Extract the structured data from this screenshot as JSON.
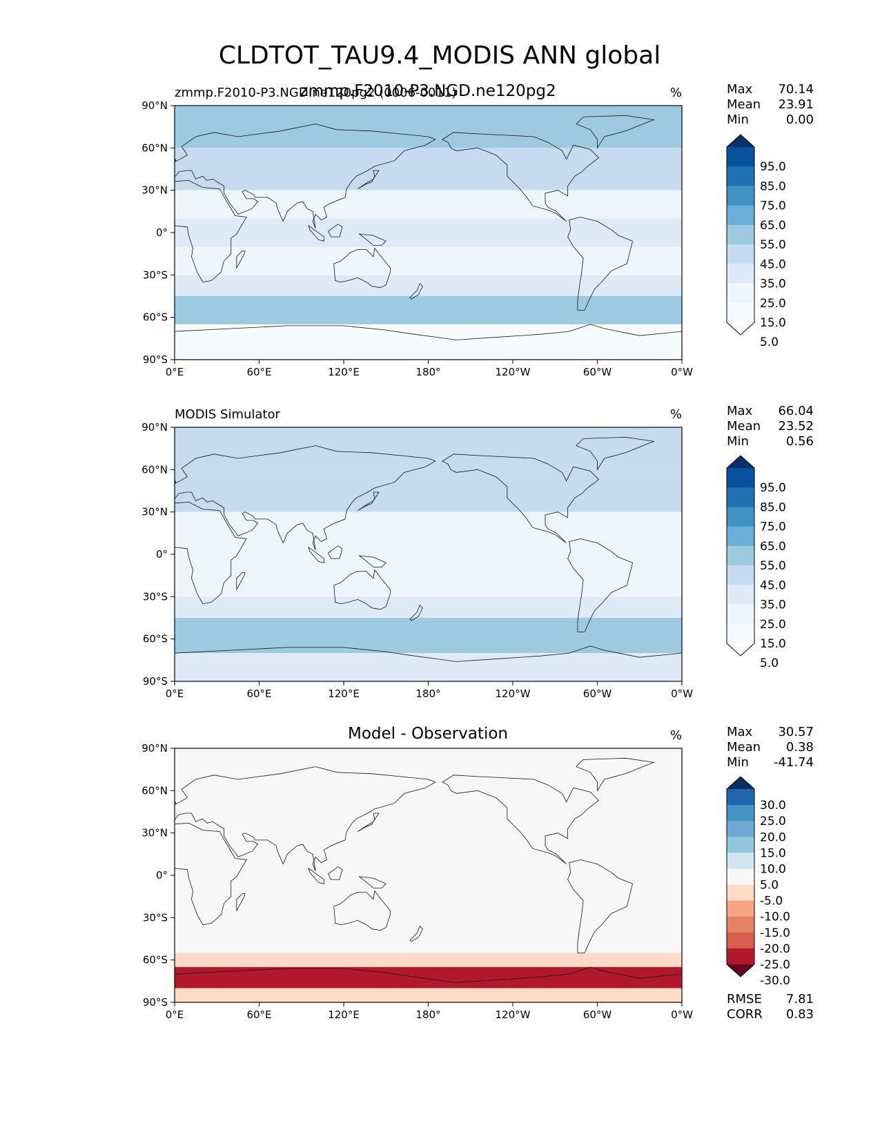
{
  "chart_data": {
    "type": "heatmap",
    "title": "CLDTOT_TAU9.4_MODIS ANN global",
    "panels": [
      {
        "id": "test",
        "left_title": "zmmp.F2010-P3.NGD.ne120pg2 (0006-0011)",
        "center_title": "zmmp.F2010-P3.NGD.ne120pg2",
        "units": "%",
        "stats": [
          {
            "label": "Max",
            "value": "70.14"
          },
          {
            "label": "Mean",
            "value": "23.91"
          },
          {
            "label": "Min",
            "value": "0.00"
          }
        ],
        "colorbar_levels": [
          "95.0",
          "85.0",
          "75.0",
          "65.0",
          "55.0",
          "45.0",
          "35.0",
          "25.0",
          "15.0",
          "5.0"
        ],
        "colorbar_colors": [
          "#08306b",
          "#08519c",
          "#2171b5",
          "#4292c6",
          "#6baed6",
          "#9ecae1",
          "#c6dbef",
          "#deebf7",
          "#eef5fc",
          "#f7fbff",
          "#ffffff"
        ],
        "x_ticks": [
          "0°E",
          "60°E",
          "120°E",
          "180°",
          "120°W",
          "60°W",
          "0°W"
        ],
        "y_ticks": [
          "90°N",
          "60°N",
          "30°N",
          "0°",
          "30°S",
          "60°S",
          "90°S"
        ],
        "field": [
          {
            "lat_range": [
              60,
              90
            ],
            "value": 45
          },
          {
            "lat_range": [
              30,
              60
            ],
            "value": 40
          },
          {
            "lat_range": [
              10,
              30
            ],
            "value": 20
          },
          {
            "lat_range": [
              -10,
              10
            ],
            "value": 25
          },
          {
            "lat_range": [
              -30,
              -10
            ],
            "value": 20
          },
          {
            "lat_range": [
              -45,
              -30
            ],
            "value": 30
          },
          {
            "lat_range": [
              -65,
              -45
            ],
            "value": 50
          },
          {
            "lat_range": [
              -90,
              -65
            ],
            "value": 5
          }
        ]
      },
      {
        "id": "reference",
        "left_title": "MODIS Simulator",
        "center_title": "",
        "units": "%",
        "stats": [
          {
            "label": "Max",
            "value": "66.04"
          },
          {
            "label": "Mean",
            "value": "23.52"
          },
          {
            "label": "Min",
            "value": "0.56"
          }
        ],
        "colorbar_levels": [
          "95.0",
          "85.0",
          "75.0",
          "65.0",
          "55.0",
          "45.0",
          "35.0",
          "25.0",
          "15.0",
          "5.0"
        ],
        "colorbar_colors": [
          "#08306b",
          "#08519c",
          "#2171b5",
          "#4292c6",
          "#6baed6",
          "#9ecae1",
          "#c6dbef",
          "#deebf7",
          "#eef5fc",
          "#f7fbff",
          "#ffffff"
        ],
        "x_ticks": [
          "0°E",
          "60°E",
          "120°E",
          "180°",
          "120°W",
          "60°W",
          "0°W"
        ],
        "y_ticks": [
          "90°N",
          "60°N",
          "30°N",
          "0°",
          "30°S",
          "60°S",
          "90°S"
        ],
        "field": [
          {
            "lat_range": [
              60,
              90
            ],
            "value": 40
          },
          {
            "lat_range": [
              30,
              60
            ],
            "value": 38
          },
          {
            "lat_range": [
              10,
              30
            ],
            "value": 20
          },
          {
            "lat_range": [
              -10,
              10
            ],
            "value": 22
          },
          {
            "lat_range": [
              -30,
              -10
            ],
            "value": 20
          },
          {
            "lat_range": [
              -45,
              -30
            ],
            "value": 30
          },
          {
            "lat_range": [
              -70,
              -45
            ],
            "value": 50
          },
          {
            "lat_range": [
              -90,
              -70
            ],
            "value": 25
          }
        ]
      },
      {
        "id": "difference",
        "left_title": "",
        "center_title": "Model - Observation",
        "units": "%",
        "stats": [
          {
            "label": "Max",
            "value": "30.57"
          },
          {
            "label": "Mean",
            "value": "0.38"
          },
          {
            "label": "Min",
            "value": "-41.74"
          }
        ],
        "colorbar_levels": [
          "30.0",
          "25.0",
          "20.0",
          "15.0",
          "10.0",
          "5.0",
          "-5.0",
          "-10.0",
          "-15.0",
          "-20.0",
          "-25.0",
          "-30.0"
        ],
        "colorbar_colors": [
          "#053061",
          "#2166ac",
          "#4393c3",
          "#6fa8d0",
          "#92c5de",
          "#d1e5f0",
          "#f7f7f7",
          "#fddbc7",
          "#f4a582",
          "#e58266",
          "#d6604d",
          "#b2182b",
          "#67001f"
        ],
        "x_ticks": [
          "0°E",
          "60°E",
          "120°E",
          "180°",
          "120°W",
          "60°W",
          "0°W"
        ],
        "y_ticks": [
          "90°N",
          "60°N",
          "30°N",
          "0°",
          "30°S",
          "60°S",
          "90°S"
        ],
        "field": [
          {
            "lat_range": [
              60,
              90
            ],
            "value": 2
          },
          {
            "lat_range": [
              30,
              60
            ],
            "value": 0
          },
          {
            "lat_range": [
              10,
              30
            ],
            "value": 0
          },
          {
            "lat_range": [
              -10,
              10
            ],
            "value": 3
          },
          {
            "lat_range": [
              -30,
              -10
            ],
            "value": -2
          },
          {
            "lat_range": [
              -55,
              -30
            ],
            "value": 0
          },
          {
            "lat_range": [
              -65,
              -55
            ],
            "value": -8
          },
          {
            "lat_range": [
              -80,
              -65
            ],
            "value": -28
          },
          {
            "lat_range": [
              -90,
              -80
            ],
            "value": -6
          }
        ],
        "metrics": [
          {
            "label": "RMSE",
            "value": "7.81"
          },
          {
            "label": "CORR",
            "value": "0.83"
          }
        ]
      }
    ]
  }
}
